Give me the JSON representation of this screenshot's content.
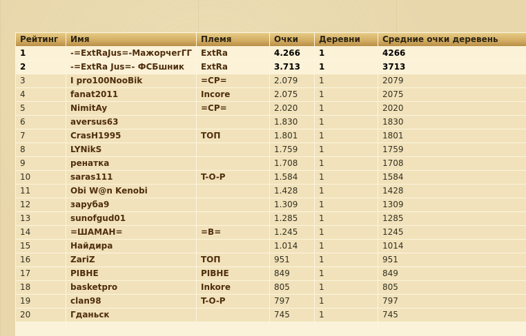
{
  "colors": {
    "page_background": "#e8d7ab",
    "header_gradient_top": "#e6ca85",
    "header_gradient_bottom": "#b98f47",
    "row_normal": "#f1e2bb",
    "row_highlight": "#fbf2d7",
    "cell_separator": "#fcf5de",
    "link_text": "#4f2e0d",
    "plain_text": "#33301f"
  },
  "table": {
    "columns": [
      {
        "key": "rank",
        "label": "Рейтинг"
      },
      {
        "key": "name",
        "label": "Имя"
      },
      {
        "key": "tribe",
        "label": "Племя"
      },
      {
        "key": "points",
        "label": "Очки"
      },
      {
        "key": "villages",
        "label": "Деревни"
      },
      {
        "key": "avg",
        "label": "Средние очки деревень"
      }
    ],
    "rows": [
      {
        "rank": "1",
        "name": "-=ExtRaJus=-МажорчегГГ",
        "tribe": "ExtRa",
        "points": "4.266",
        "villages": "1",
        "avg": "4266",
        "highlight": true
      },
      {
        "rank": "2",
        "name": "-=ExtRa Jus=- ФСБшник",
        "tribe": "ExtRa",
        "points": "3.713",
        "villages": "1",
        "avg": "3713",
        "highlight": true
      },
      {
        "rank": "3",
        "name": "I pro100NooBik",
        "tribe": "=CP=",
        "points": "2.079",
        "villages": "1",
        "avg": "2079",
        "highlight": false
      },
      {
        "rank": "4",
        "name": "fanat2011",
        "tribe": "Incore",
        "points": "2.075",
        "villages": "1",
        "avg": "2075",
        "highlight": false
      },
      {
        "rank": "5",
        "name": "NimitAy",
        "tribe": "=CP=",
        "points": "2.020",
        "villages": "1",
        "avg": "2020",
        "highlight": false
      },
      {
        "rank": "6",
        "name": "aversus63",
        "tribe": "",
        "points": "1.830",
        "villages": "1",
        "avg": "1830",
        "highlight": false
      },
      {
        "rank": "7",
        "name": "CrasH1995",
        "tribe": "ТОП",
        "points": "1.801",
        "villages": "1",
        "avg": "1801",
        "highlight": false
      },
      {
        "rank": "8",
        "name": "LYNikS",
        "tribe": "",
        "points": "1.759",
        "villages": "1",
        "avg": "1759",
        "highlight": false
      },
      {
        "rank": "9",
        "name": "ренатка",
        "tribe": "",
        "points": "1.708",
        "villages": "1",
        "avg": "1708",
        "highlight": false
      },
      {
        "rank": "10",
        "name": "saras111",
        "tribe": "T-O-P",
        "points": "1.584",
        "villages": "1",
        "avg": "1584",
        "highlight": false
      },
      {
        "rank": "11",
        "name": "Obi W@n Kenobi",
        "tribe": "",
        "points": "1.428",
        "villages": "1",
        "avg": "1428",
        "highlight": false
      },
      {
        "rank": "12",
        "name": "заруба9",
        "tribe": "",
        "points": "1.309",
        "villages": "1",
        "avg": "1309",
        "highlight": false
      },
      {
        "rank": "13",
        "name": "sunofgud01",
        "tribe": "",
        "points": "1.285",
        "villages": "1",
        "avg": "1285",
        "highlight": false
      },
      {
        "rank": "14",
        "name": "=ШАМАН=",
        "tribe": "=B=",
        "points": "1.245",
        "villages": "1",
        "avg": "1245",
        "highlight": false
      },
      {
        "rank": "15",
        "name": "Найдира",
        "tribe": "",
        "points": "1.014",
        "villages": "1",
        "avg": "1014",
        "highlight": false
      },
      {
        "rank": "16",
        "name": "ZariZ",
        "tribe": "ТОП",
        "points": "951",
        "villages": "1",
        "avg": "951",
        "highlight": false
      },
      {
        "rank": "17",
        "name": "РІВНЕ",
        "tribe": "РІВНЕ",
        "points": "849",
        "villages": "1",
        "avg": "849",
        "highlight": false
      },
      {
        "rank": "18",
        "name": "basketpro",
        "tribe": "Inkore",
        "points": "805",
        "villages": "1",
        "avg": "805",
        "highlight": false
      },
      {
        "rank": "19",
        "name": "clan98",
        "tribe": "T-O-P",
        "points": "797",
        "villages": "1",
        "avg": "797",
        "highlight": false
      },
      {
        "rank": "20",
        "name": "Гданьск",
        "tribe": "",
        "points": "745",
        "villages": "1",
        "avg": "745",
        "highlight": false
      }
    ]
  }
}
